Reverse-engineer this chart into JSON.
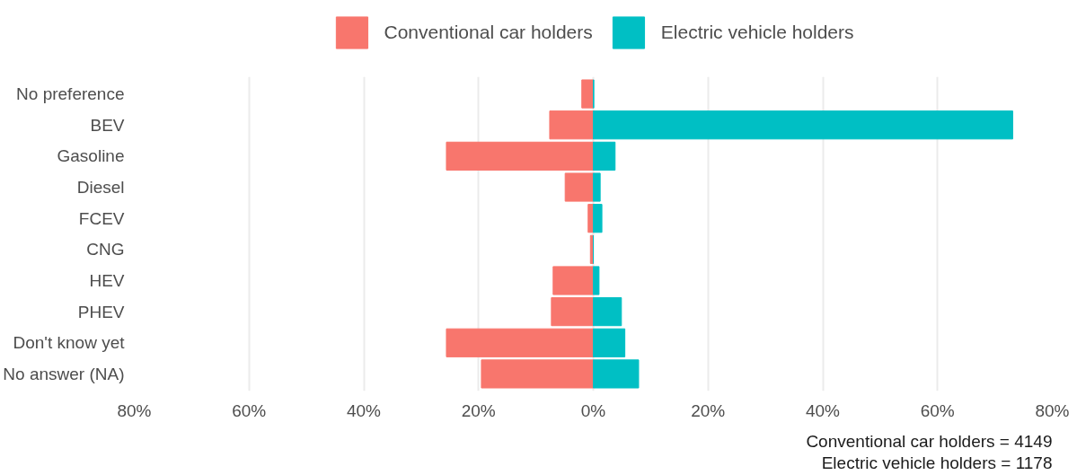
{
  "chart_data": {
    "type": "bar",
    "orientation": "horizontal",
    "categories": [
      "No preference",
      "BEV",
      "Gasoline",
      "Diesel",
      "FCEV",
      "CNG",
      "HEV",
      "PHEV",
      "Don't know yet",
      "No answer (NA)"
    ],
    "series": [
      {
        "name": "Conventional car holders",
        "color": "#f8766d",
        "values": [
          -2.0,
          -7.6,
          -25.6,
          -4.9,
          -0.9,
          -0.5,
          -7.0,
          -7.3,
          -25.6,
          -19.5
        ]
      },
      {
        "name": "Electric vehicle holders",
        "color": "#00bfc4",
        "values": [
          0.1,
          73.1,
          3.8,
          1.2,
          1.5,
          0,
          1.0,
          4.9,
          5.5,
          7.9
        ]
      }
    ],
    "xlim": [
      -80,
      80
    ],
    "stacked": true,
    "xticks": [
      {
        "value": -80,
        "label": "80%"
      },
      {
        "value": -60,
        "label": "60%"
      },
      {
        "value": -40,
        "label": "40%"
      },
      {
        "value": -20,
        "label": "20%"
      },
      {
        "value": 0,
        "label": "0%"
      },
      {
        "value": 20,
        "label": "20%"
      },
      {
        "value": 40,
        "label": "40%"
      },
      {
        "value": 60,
        "label": "60%"
      },
      {
        "value": 80,
        "label": "80%"
      }
    ],
    "grid": "x",
    "legend": "top",
    "annotations": [
      "Conventional car holders = 4149",
      "Electric vehicle holders = 1178"
    ]
  }
}
